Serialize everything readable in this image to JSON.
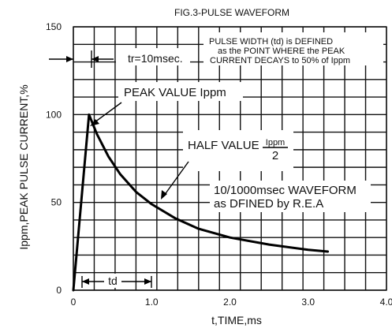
{
  "chart_data": {
    "type": "line",
    "title": "FIG.3-PULSE WAVEFORM",
    "xlabel": "t,TIME,ms",
    "ylabel": "Ippm,PEAK PULSE CURRENT,%",
    "xlim": [
      0,
      4.0
    ],
    "ylim": [
      0,
      150
    ],
    "grid": true,
    "x_ticks": [
      {
        "value": 0,
        "label": "0"
      },
      {
        "value": 1.0,
        "label": "1.0"
      },
      {
        "value": 2.0,
        "label": "2.0"
      },
      {
        "value": 3.0,
        "label": "3.0"
      },
      {
        "value": 4.0,
        "label": "4.0"
      }
    ],
    "y_ticks": [
      {
        "value": 0,
        "label": "0"
      },
      {
        "value": 50,
        "label": "50"
      },
      {
        "value": 100,
        "label": "100"
      },
      {
        "value": 150,
        "label": "150"
      }
    ],
    "series": [
      {
        "x": [
          0.0,
          0.2,
          0.3,
          0.45,
          0.6,
          0.8,
          1.0,
          1.3,
          1.6,
          2.0,
          2.5,
          3.0,
          3.25
        ],
        "y": [
          0,
          100,
          89,
          76,
          66,
          56,
          49,
          41,
          35,
          30,
          26,
          23,
          22
        ]
      }
    ],
    "annotations": {
      "pulse_width_lines": [
        "PULSE WIDTH (td) is DEFINED",
        "as the POINT WHERE the PEAK",
        "CURRENT DECAYS to 50% of Ippm"
      ],
      "tr_label": "tr=10msec.",
      "peak_label": "PEAK VALUE Ippm",
      "half_value_label": "HALF VALUE",
      "half_value_numerator": "Ippm",
      "half_value_denominator": "2",
      "waveform_lines": [
        "10/1000msec WAVEFORM",
        "as DFINED by R.E.A"
      ],
      "td_label": "td"
    }
  }
}
